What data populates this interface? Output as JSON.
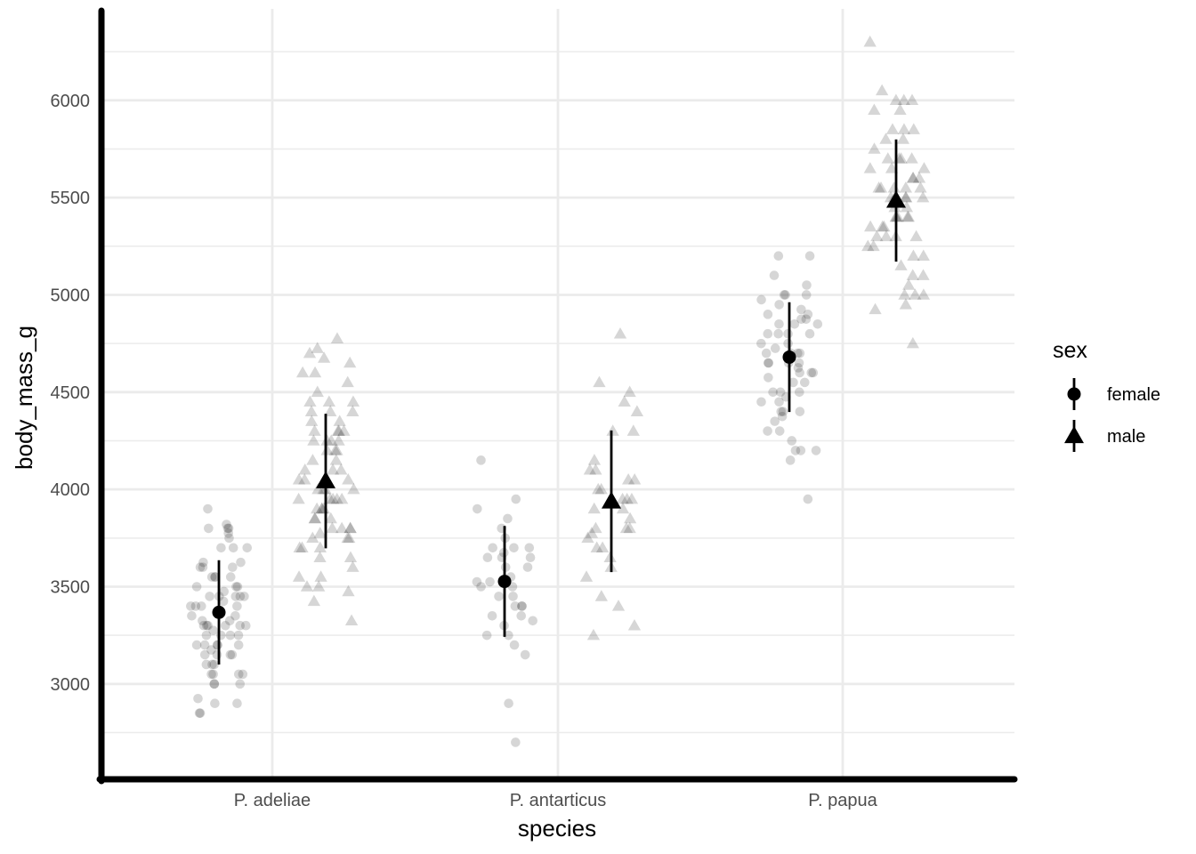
{
  "chart_data": {
    "type": "scatter",
    "title": "",
    "xlabel": "species",
    "ylabel": "body_mass_g",
    "categories": [
      "P. adeliae",
      "P. antarticus",
      "P. papua"
    ],
    "yticks": [
      3000,
      3500,
      4000,
      4500,
      5000,
      5500,
      6000
    ],
    "ylim": [
      2510,
      6470
    ],
    "grid": true,
    "legend": {
      "title": "sex",
      "position": "right",
      "entries": [
        "female",
        "male"
      ]
    },
    "colors": {
      "summary": "#000000",
      "raw_points": "#000000",
      "grid": "#ebebeb",
      "axis": "#000000",
      "tick_text": "#4d4d4d"
    },
    "series": [
      {
        "name": "female",
        "shape": "circle",
        "summary": [
          {
            "category": "P. adeliae",
            "mean": 3368,
            "low": 3100,
            "high": 3636
          },
          {
            "category": "P. antarticus",
            "mean": 3527,
            "low": 3242,
            "high": 3812
          },
          {
            "category": "P. papua",
            "mean": 4680,
            "low": 4398,
            "high": 4962
          }
        ],
        "points": {
          "P. adeliae": [
            3800,
            3900,
            3820,
            3700,
            3750,
            3800,
            3600,
            3625,
            3550,
            3500,
            3600,
            3450,
            3450,
            3400,
            3425,
            3300,
            3325,
            3350,
            3300,
            3250,
            3200,
            3200,
            3150,
            3175,
            3100,
            3050,
            3050,
            3000,
            3000,
            2900,
            2900,
            2850,
            2850,
            3800,
            3550,
            3450,
            3300,
            3150,
            3700,
            3625,
            3550,
            3450,
            3400,
            3300,
            3250,
            3200,
            3150,
            3500,
            3475,
            3400,
            3325,
            3275,
            3250,
            3150,
            3100,
            3050,
            3000,
            3450,
            3550,
            3350,
            3200,
            2925,
            3775,
            3400,
            3300,
            3250,
            3100,
            3600,
            3500,
            3200,
            3700,
            3050,
            3300
          ],
          "P. antarticus": [
            3950,
            3900,
            3850,
            3800,
            3750,
            3700,
            3700,
            3675,
            3650,
            3650,
            3600,
            3600,
            3550,
            3525,
            3500,
            3450,
            3450,
            3400,
            3400,
            3350,
            3350,
            3325,
            3300,
            3250,
            3250,
            3200,
            3150,
            2900,
            2700,
            4150,
            3700,
            3500,
            3525,
            3650,
            3400
          ],
          "P. papua": [
            5200,
            5200,
            5100,
            5050,
            5000,
            5000,
            4975,
            4950,
            4925,
            4900,
            4875,
            4850,
            4850,
            4800,
            4800,
            4750,
            4725,
            4700,
            4700,
            4700,
            4650,
            4650,
            4625,
            4600,
            4600,
            4575,
            4550,
            4500,
            4500,
            4475,
            4450,
            4400,
            4400,
            4375,
            4350,
            4300,
            4300,
            4250,
            4200,
            4200,
            4150,
            3950,
            5000,
            4850,
            4800,
            4750,
            4650,
            4600,
            4500,
            4450,
            4200,
            4400,
            4700,
            4650,
            4800,
            4900,
            4550,
            4875
          ]
        }
      },
      {
        "name": "male",
        "shape": "triangle",
        "summary": [
          {
            "category": "P. adeliae",
            "mean": 4043,
            "low": 3697,
            "high": 4389
          },
          {
            "category": "P. antarticus",
            "mean": 3939,
            "low": 3575,
            "high": 4303
          },
          {
            "category": "P. papua",
            "mean": 5485,
            "low": 5171,
            "high": 5799
          }
        ],
        "points": {
          "P. adeliae": [
            4775,
            4725,
            4700,
            4675,
            4650,
            4600,
            4600,
            4550,
            4500,
            4450,
            4450,
            4400,
            4400,
            4400,
            4350,
            4300,
            4300,
            4300,
            4250,
            4250,
            4250,
            4200,
            4200,
            4150,
            4150,
            4100,
            4100,
            4050,
            4050,
            4000,
            4000,
            4000,
            3950,
            3950,
            3950,
            3900,
            3900,
            3900,
            3850,
            3850,
            3800,
            3800,
            3800,
            3775,
            3750,
            3750,
            3700,
            3700,
            3650,
            3650,
            3600,
            3550,
            3550,
            3500,
            3500,
            3475,
            3425,
            3325,
            4300,
            4000,
            3950,
            3900,
            4200,
            4050,
            3850,
            3800,
            4250,
            4100,
            4450,
            3700,
            3750,
            4350,
            3950
          ],
          "P. antarticus": [
            4800,
            4550,
            4500,
            4450,
            4400,
            4300,
            4300,
            4150,
            4100,
            4100,
            4050,
            4050,
            4000,
            4000,
            3950,
            3950,
            3950,
            3900,
            3900,
            3850,
            3800,
            3800,
            3800,
            3775,
            3750,
            3700,
            3700,
            3650,
            3600,
            3550,
            3450,
            3400,
            3300,
            3250
          ]
        },
        "points_papua": [
          6300,
          6050,
          6000,
          6000,
          6000,
          5950,
          5950,
          5850,
          5850,
          5850,
          5800,
          5800,
          5750,
          5700,
          5700,
          5700,
          5650,
          5650,
          5650,
          5600,
          5600,
          5550,
          5550,
          5550,
          5550,
          5500,
          5500,
          5500,
          5500,
          5450,
          5450,
          5400,
          5400,
          5400,
          5400,
          5350,
          5350,
          5350,
          5300,
          5300,
          5300,
          5300,
          5250,
          5250,
          5200,
          5200,
          5150,
          5100,
          5100,
          5050,
          5000,
          5000,
          5000,
          4950,
          4925,
          4750,
          5700,
          5500,
          5400,
          5600,
          5550
        ]
      }
    ]
  }
}
